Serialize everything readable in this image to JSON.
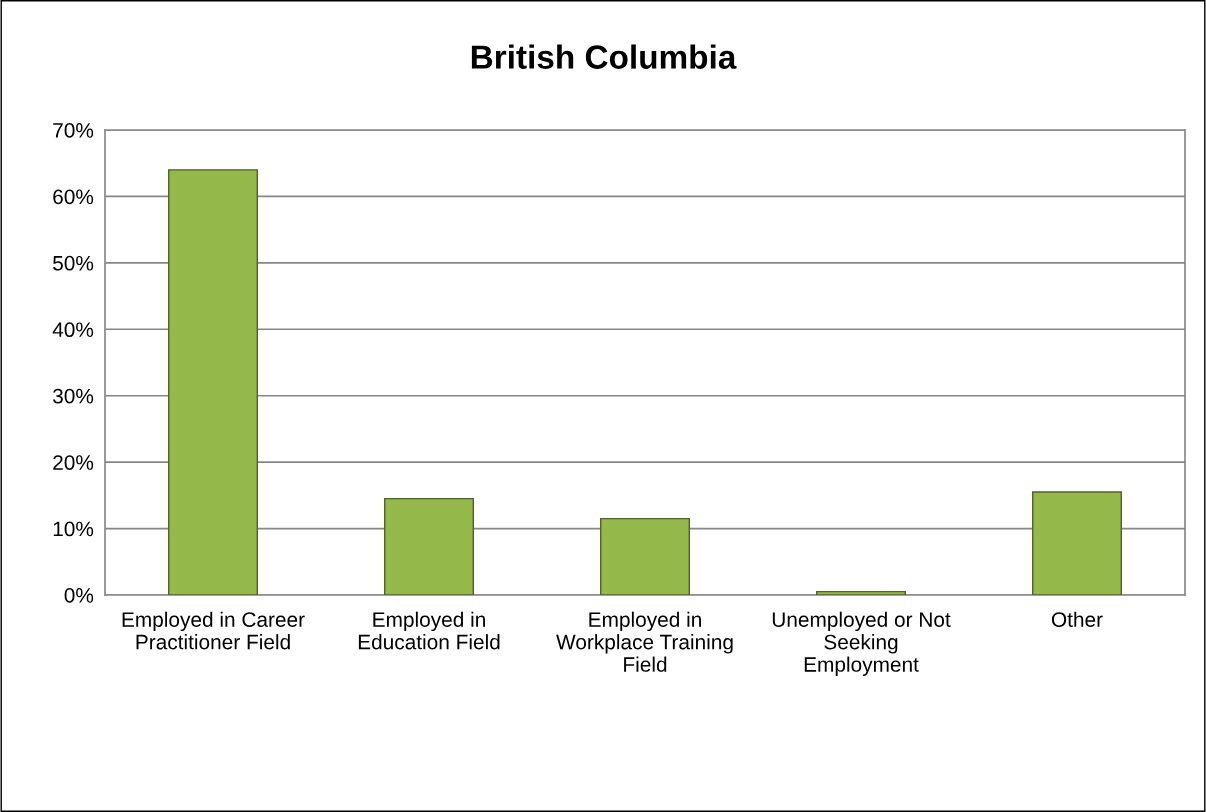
{
  "chart_data": {
    "type": "bar",
    "title": "British Columbia",
    "categories": [
      "Employed in Career\nPractitioner Field",
      "Employed in\nEducation Field",
      "Employed in\nWorkplace Training\nField",
      "Unemployed or Not\nSeeking\nEmployment",
      "Other"
    ],
    "values": [
      64,
      14.5,
      11.5,
      0.5,
      15.5
    ],
    "color": "#95b84a",
    "ylim": [
      0,
      70
    ],
    "yticks": [
      {
        "value": 0,
        "label": "0%"
      },
      {
        "value": 10,
        "label": "10%"
      },
      {
        "value": 20,
        "label": "20%"
      },
      {
        "value": 30,
        "label": "30%"
      },
      {
        "value": 40,
        "label": "40%"
      },
      {
        "value": 50,
        "label": "50%"
      },
      {
        "value": 60,
        "label": "60%"
      },
      {
        "value": 70,
        "label": "70%"
      }
    ],
    "grid": "y",
    "legend": false
  }
}
